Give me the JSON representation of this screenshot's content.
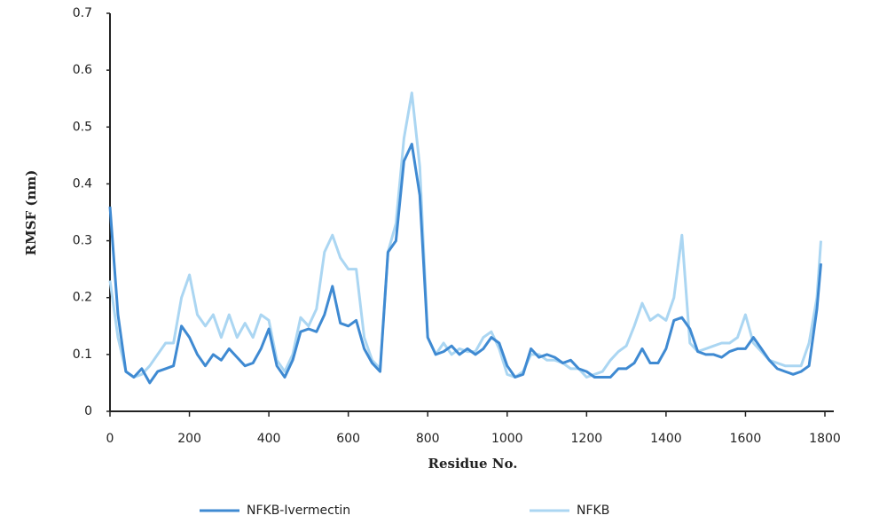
{
  "chart_data": {
    "type": "line",
    "xlabel": "Residue No.",
    "ylabel": "RMSF (nm)",
    "xlim": [
      0,
      1800
    ],
    "xticks": [
      0,
      200,
      400,
      600,
      800,
      1000,
      1200,
      1400,
      1600,
      1800
    ],
    "ylim": [
      0,
      0.7
    ],
    "yticks": [
      0,
      0.1,
      0.2,
      0.3,
      0.4,
      0.5,
      0.6,
      0.7
    ],
    "grid": false,
    "legend": "bottom",
    "x": [
      0,
      20,
      40,
      60,
      80,
      100,
      120,
      140,
      160,
      180,
      200,
      220,
      240,
      260,
      280,
      300,
      320,
      340,
      360,
      380,
      400,
      420,
      440,
      460,
      480,
      500,
      520,
      540,
      560,
      580,
      600,
      620,
      640,
      660,
      680,
      700,
      720,
      740,
      760,
      780,
      800,
      820,
      840,
      860,
      880,
      900,
      920,
      940,
      960,
      980,
      1000,
      1020,
      1040,
      1060,
      1080,
      1100,
      1120,
      1140,
      1160,
      1180,
      1200,
      1220,
      1240,
      1260,
      1280,
      1300,
      1320,
      1340,
      1360,
      1380,
      1400,
      1420,
      1440,
      1460,
      1480,
      1500,
      1520,
      1540,
      1560,
      1580,
      1600,
      1620,
      1640,
      1660,
      1680,
      1700,
      1720,
      1740,
      1760,
      1780,
      1790
    ],
    "series": [
      {
        "name": "NFKB-Ivermectin",
        "color": "#3f8ad2",
        "values": [
          0.36,
          0.17,
          0.07,
          0.06,
          0.075,
          0.05,
          0.07,
          0.075,
          0.08,
          0.15,
          0.13,
          0.1,
          0.08,
          0.1,
          0.09,
          0.11,
          0.095,
          0.08,
          0.085,
          0.11,
          0.145,
          0.08,
          0.06,
          0.09,
          0.14,
          0.145,
          0.14,
          0.17,
          0.22,
          0.155,
          0.15,
          0.16,
          0.11,
          0.085,
          0.07,
          0.28,
          0.3,
          0.44,
          0.47,
          0.38,
          0.13,
          0.1,
          0.105,
          0.115,
          0.1,
          0.11,
          0.1,
          0.11,
          0.13,
          0.12,
          0.08,
          0.06,
          0.065,
          0.11,
          0.095,
          0.1,
          0.095,
          0.085,
          0.09,
          0.075,
          0.07,
          0.06,
          0.06,
          0.06,
          0.075,
          0.075,
          0.085,
          0.11,
          0.085,
          0.085,
          0.11,
          0.16,
          0.165,
          0.145,
          0.105,
          0.1,
          0.1,
          0.095,
          0.105,
          0.11,
          0.11,
          0.13,
          0.11,
          0.09,
          0.075,
          0.07,
          0.065,
          0.07,
          0.08,
          0.18,
          0.26
        ]
      },
      {
        "name": "NFKB",
        "color": "#abd6f2",
        "values": [
          0.23,
          0.13,
          0.07,
          0.06,
          0.065,
          0.08,
          0.1,
          0.12,
          0.12,
          0.2,
          0.24,
          0.17,
          0.15,
          0.17,
          0.13,
          0.17,
          0.13,
          0.155,
          0.13,
          0.17,
          0.16,
          0.09,
          0.07,
          0.1,
          0.165,
          0.15,
          0.18,
          0.28,
          0.31,
          0.27,
          0.25,
          0.25,
          0.13,
          0.09,
          0.075,
          0.28,
          0.33,
          0.48,
          0.56,
          0.43,
          0.13,
          0.1,
          0.12,
          0.1,
          0.11,
          0.105,
          0.105,
          0.13,
          0.14,
          0.11,
          0.065,
          0.06,
          0.07,
          0.1,
          0.1,
          0.09,
          0.09,
          0.085,
          0.075,
          0.075,
          0.06,
          0.065,
          0.07,
          0.09,
          0.105,
          0.115,
          0.15,
          0.19,
          0.16,
          0.17,
          0.16,
          0.2,
          0.31,
          0.12,
          0.105,
          0.11,
          0.115,
          0.12,
          0.12,
          0.13,
          0.17,
          0.12,
          0.105,
          0.09,
          0.085,
          0.08,
          0.08,
          0.08,
          0.12,
          0.2,
          0.3
        ]
      }
    ]
  }
}
